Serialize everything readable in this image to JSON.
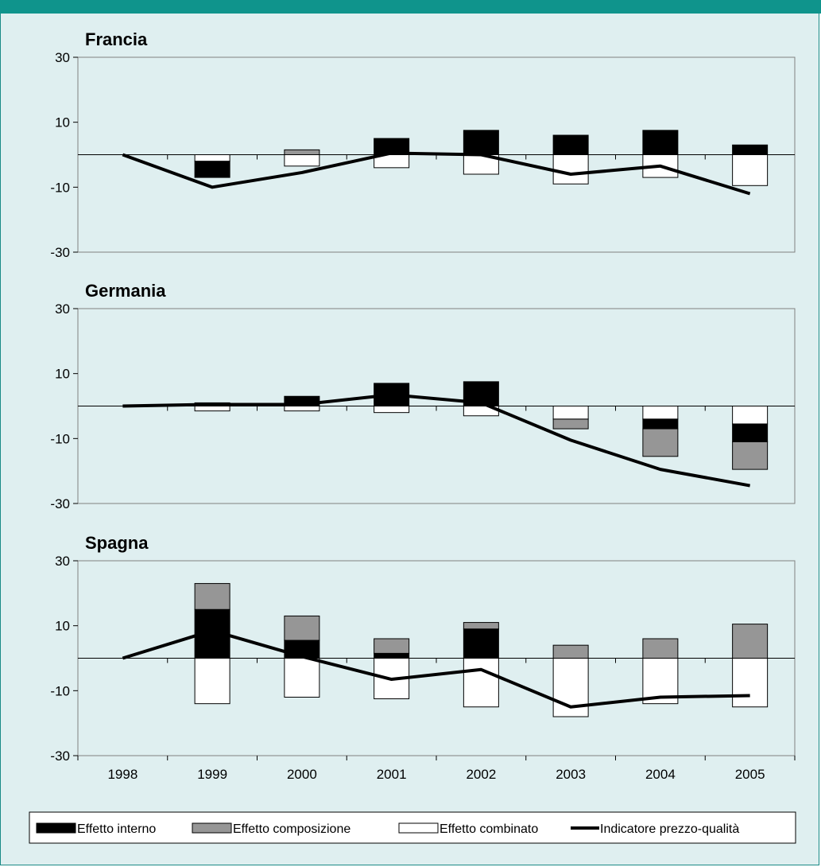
{
  "chart_data": {
    "type": "bar",
    "categories": [
      "1998",
      "1999",
      "2000",
      "2001",
      "2002",
      "2003",
      "2004",
      "2005"
    ],
    "yticks": [
      "30",
      "10",
      "-10",
      "-30"
    ],
    "ylim": [
      -30,
      30
    ],
    "legend": {
      "position": "bottom",
      "items": [
        {
          "label": "Effetto interno",
          "kind": "bar",
          "color": "#000000"
        },
        {
          "label": "Effetto composizione",
          "kind": "bar",
          "color": "#969696"
        },
        {
          "label": "Effetto combinato",
          "kind": "bar",
          "color": "#ffffff"
        },
        {
          "label": "Indicatore prezzo-qualità",
          "kind": "line",
          "color": "#000000"
        }
      ]
    },
    "panels": [
      {
        "title": "Francia",
        "series": [
          {
            "name": "Effetto interno",
            "segments": [
              null,
              [
                -2,
                -7
              ],
              null,
              [
                0,
                5
              ],
              [
                0,
                7.5
              ],
              [
                0,
                6
              ],
              [
                0,
                7.5
              ],
              [
                0,
                3
              ]
            ]
          },
          {
            "name": "Effetto composizione",
            "segments": [
              null,
              null,
              [
                0,
                1.5
              ],
              null,
              null,
              null,
              null,
              null
            ]
          },
          {
            "name": "Effetto combinato",
            "segments": [
              null,
              [
                0,
                -2
              ],
              [
                0,
                -3.5
              ],
              [
                0,
                -4
              ],
              [
                0,
                -6
              ],
              [
                0,
                -9
              ],
              [
                0,
                -7
              ],
              [
                0,
                -9.5
              ]
            ]
          }
        ],
        "line": {
          "name": "Indicatore prezzo-qualità",
          "values": [
            0,
            -10,
            -5.5,
            0.5,
            0,
            -6,
            -3.5,
            -12
          ]
        }
      },
      {
        "title": "Germania",
        "series": [
          {
            "name": "Effetto interno",
            "segments": [
              null,
              null,
              [
                0,
                3
              ],
              [
                0,
                7
              ],
              [
                0,
                7.5
              ],
              null,
              [
                -4,
                -7
              ],
              [
                -5.5,
                -11
              ]
            ]
          },
          {
            "name": "Effetto composizione",
            "segments": [
              null,
              [
                0,
                1
              ],
              null,
              null,
              null,
              [
                -4,
                -7
              ],
              [
                -7,
                -15.5
              ],
              [
                -11,
                -19.5
              ]
            ]
          },
          {
            "name": "Effetto combinato",
            "segments": [
              null,
              [
                0,
                -1.5
              ],
              [
                0,
                -1.5
              ],
              [
                0,
                -2
              ],
              [
                0,
                -3
              ],
              [
                0,
                -4
              ],
              [
                0,
                -4
              ],
              [
                0,
                -5.5
              ]
            ]
          }
        ],
        "line": {
          "name": "Indicatore prezzo-qualità",
          "values": [
            0,
            0.5,
            0.5,
            3.5,
            1,
            -10.5,
            -19.5,
            -24.5
          ]
        }
      },
      {
        "title": "Spagna",
        "series": [
          {
            "name": "Effetto interno",
            "segments": [
              null,
              [
                0,
                15
              ],
              [
                0,
                5.5
              ],
              [
                0,
                1.5
              ],
              [
                0,
                9
              ],
              null,
              null,
              null
            ]
          },
          {
            "name": "Effetto composizione",
            "segments": [
              null,
              [
                15,
                23
              ],
              [
                5.5,
                13
              ],
              [
                1.5,
                6
              ],
              [
                9,
                11
              ],
              [
                0,
                4
              ],
              [
                0,
                6
              ],
              [
                0,
                10.5
              ]
            ]
          },
          {
            "name": "Effetto combinato",
            "segments": [
              null,
              [
                0,
                -14
              ],
              [
                0,
                -12
              ],
              [
                0,
                -12.5
              ],
              [
                0,
                -15
              ],
              [
                0,
                -18
              ],
              [
                0,
                -14
              ],
              [
                0,
                -15
              ]
            ]
          }
        ],
        "line": {
          "name": "Indicatore prezzo-qualità",
          "values": [
            0,
            8.5,
            0.5,
            -6.5,
            -3.5,
            -15,
            -12,
            -11.5
          ]
        }
      }
    ]
  }
}
